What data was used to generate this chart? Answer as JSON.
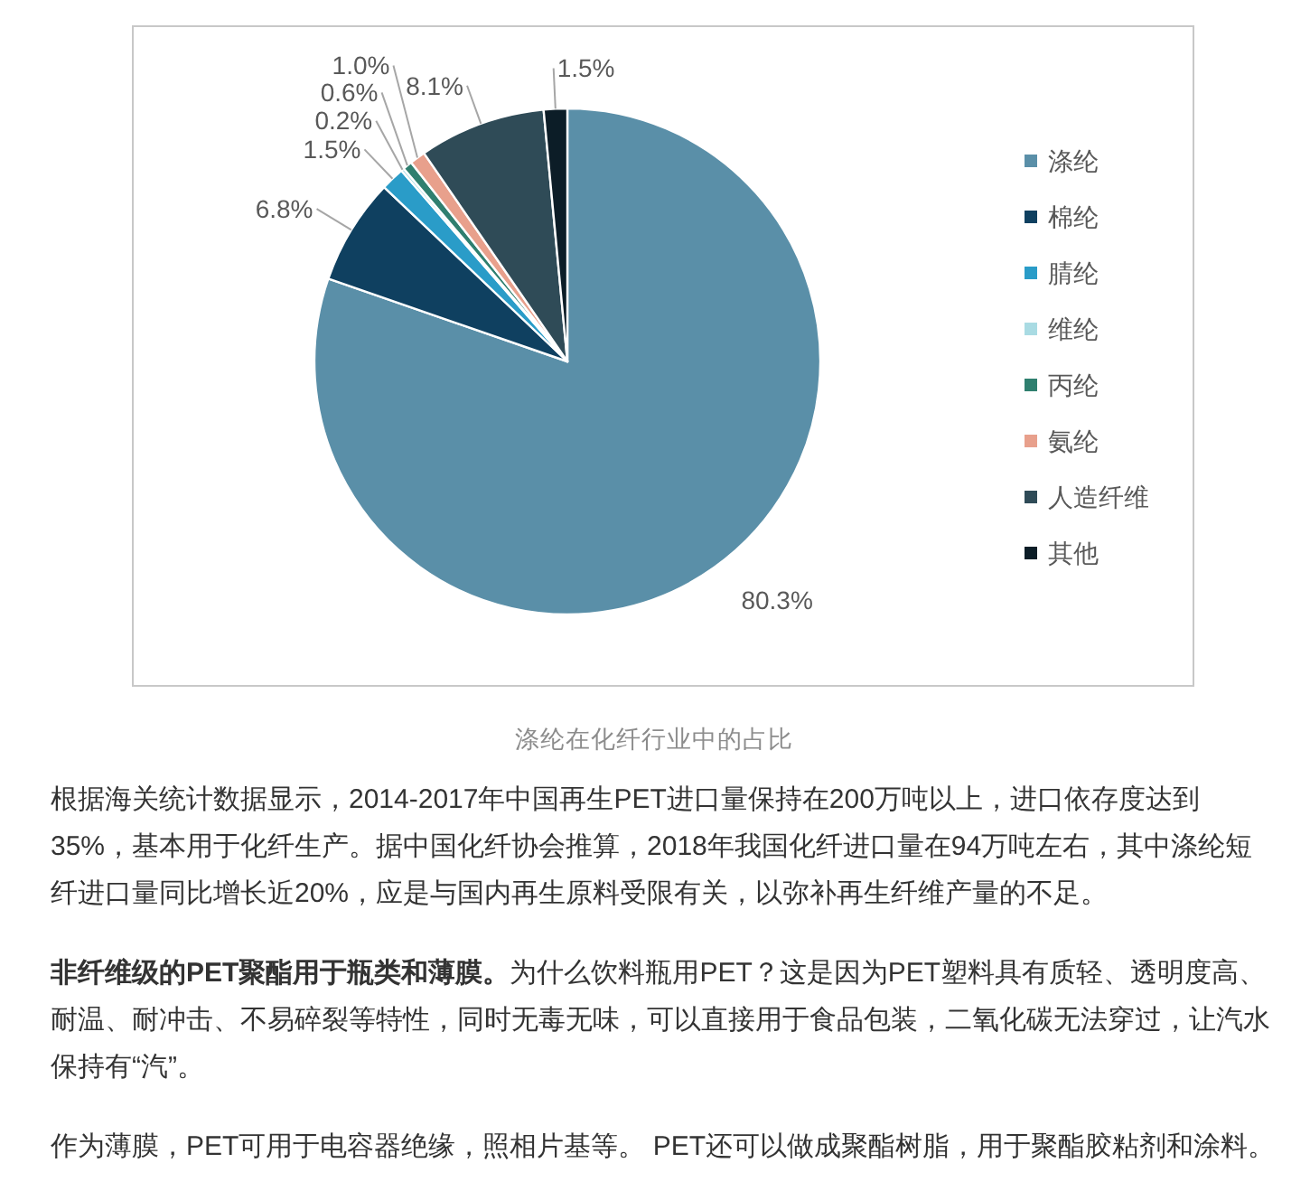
{
  "chart_data": {
    "type": "pie",
    "title": "涤纶在化纤行业中的占比",
    "categories": [
      "涤纶",
      "棉纶",
      "腈纶",
      "维纶",
      "丙纶",
      "氨纶",
      "人造纤维",
      "其他"
    ],
    "values": [
      80.3,
      6.8,
      1.5,
      0.2,
      0.6,
      1.0,
      8.1,
      1.5
    ],
    "colors": [
      "#5a8fa8",
      "#0f4060",
      "#2a9cc8",
      "#a9dbe3",
      "#2f7f6f",
      "#e8a08c",
      "#2f4b57",
      "#0c1d27"
    ],
    "value_labels": [
      "80.3%",
      "6.8%",
      "1.5%",
      "0.2%",
      "0.6%",
      "1.0%",
      "8.1%",
      "1.5%"
    ],
    "legend": "right",
    "annotations": [
      "根据海关统计数据显示，2014-2017年中国再生PET进口量保持在200万吨以上，进口依存度达到35%，基本用于化纤生产。据中国化纤协会推算，2018年我国化纤进口量在94万吨左右，其中涤纶短纤进口量同比增长近20%，应是与国内再生原料受限有关，以弥补再生纤维产量的不足。",
      "非纤维级的PET聚酯用于瓶类和薄膜。",
      "为什么饮料瓶用PET？这是因为PET塑料具有质轻、透明度高、耐温、耐冲击、不易碎裂等特性，同时无毒无味，可以直接用于食品包装，二氧化碳无法穿过，让汽水保持有“汽”。",
      "作为薄膜，PET可用于电容器绝缘，照相片基等。 PET还可以做成聚酯树脂，用于聚酯胶粘剂和涂料。"
    ]
  }
}
